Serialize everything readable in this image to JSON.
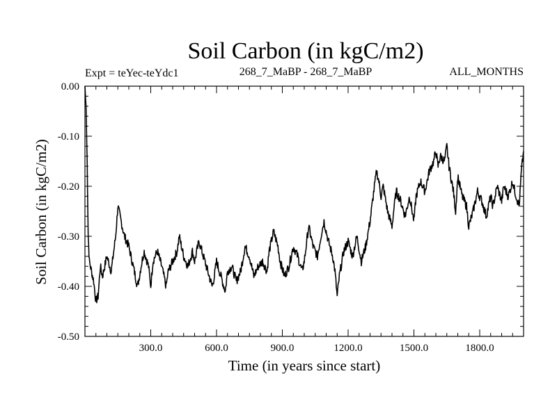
{
  "chart_data": {
    "type": "line",
    "title": "Soil Carbon (in kgC/m2)",
    "subtitle_left": "Expt = teYec-teYdc1",
    "subtitle_center": "268_7_MaBP - 268_7_MaBP",
    "subtitle_right": "ALL_MONTHS",
    "xlabel": "Time (in years since start)",
    "ylabel": "Soil Carbon (in kgC/m2)",
    "xlim": [
      0,
      2000
    ],
    "ylim": [
      -0.5,
      0.0
    ],
    "xticks": [
      300,
      600,
      900,
      1200,
      1500,
      1800
    ],
    "xtick_labels": [
      "300.0",
      "600.0",
      "900.0",
      "1200.0",
      "1500.0",
      "1800.0"
    ],
    "yticks": [
      0.0,
      -0.1,
      -0.2,
      -0.3,
      -0.4,
      -0.5
    ],
    "ytick_labels": [
      "0.00",
      "-0.10",
      "-0.20",
      "-0.30",
      "-0.40",
      "-0.50"
    ],
    "series": [
      {
        "name": "Soil Carbon",
        "color": "#000000",
        "x": [
          0,
          5,
          10,
          15,
          20,
          30,
          40,
          50,
          60,
          70,
          80,
          100,
          120,
          140,
          150,
          160,
          170,
          180,
          200,
          220,
          240,
          260,
          270,
          290,
          300,
          310,
          330,
          350,
          370,
          380,
          400,
          420,
          430,
          450,
          470,
          490,
          500,
          520,
          540,
          560,
          580,
          590,
          600,
          620,
          640,
          650,
          670,
          690,
          710,
          730,
          750,
          770,
          790,
          810,
          830,
          840,
          860,
          880,
          890,
          910,
          930,
          950,
          970,
          990,
          1000,
          1020,
          1040,
          1060,
          1080,
          1090,
          1110,
          1130,
          1140,
          1150,
          1160,
          1180,
          1200,
          1220,
          1240,
          1260,
          1280,
          1300,
          1320,
          1330,
          1340,
          1350,
          1360,
          1380,
          1400,
          1410,
          1420,
          1440,
          1460,
          1480,
          1500,
          1510,
          1530,
          1550,
          1570,
          1590,
          1600,
          1610,
          1620,
          1640,
          1650,
          1660,
          1680,
          1690,
          1700,
          1720,
          1740,
          1750,
          1770,
          1790,
          1810,
          1830,
          1850,
          1860,
          1880,
          1900,
          1910,
          1930,
          1950,
          1960,
          1980,
          1990,
          2000
        ],
        "y": [
          0.0,
          -0.04,
          -0.15,
          -0.3,
          -0.35,
          -0.37,
          -0.39,
          -0.43,
          -0.42,
          -0.36,
          -0.38,
          -0.34,
          -0.37,
          -0.3,
          -0.24,
          -0.26,
          -0.28,
          -0.3,
          -0.32,
          -0.36,
          -0.4,
          -0.35,
          -0.33,
          -0.36,
          -0.4,
          -0.35,
          -0.33,
          -0.36,
          -0.4,
          -0.37,
          -0.35,
          -0.33,
          -0.3,
          -0.34,
          -0.36,
          -0.33,
          -0.35,
          -0.31,
          -0.34,
          -0.37,
          -0.4,
          -0.38,
          -0.35,
          -0.38,
          -0.41,
          -0.37,
          -0.36,
          -0.39,
          -0.37,
          -0.32,
          -0.34,
          -0.38,
          -0.36,
          -0.35,
          -0.37,
          -0.33,
          -0.29,
          -0.32,
          -0.35,
          -0.38,
          -0.36,
          -0.32,
          -0.34,
          -0.37,
          -0.35,
          -0.28,
          -0.32,
          -0.34,
          -0.29,
          -0.27,
          -0.31,
          -0.34,
          -0.37,
          -0.42,
          -0.38,
          -0.33,
          -0.31,
          -0.34,
          -0.3,
          -0.35,
          -0.32,
          -0.27,
          -0.2,
          -0.17,
          -0.19,
          -0.22,
          -0.2,
          -0.25,
          -0.28,
          -0.24,
          -0.21,
          -0.23,
          -0.26,
          -0.22,
          -0.27,
          -0.22,
          -0.19,
          -0.21,
          -0.17,
          -0.15,
          -0.13,
          -0.16,
          -0.14,
          -0.15,
          -0.12,
          -0.16,
          -0.21,
          -0.25,
          -0.18,
          -0.22,
          -0.24,
          -0.28,
          -0.25,
          -0.21,
          -0.23,
          -0.26,
          -0.22,
          -0.24,
          -0.2,
          -0.23,
          -0.2,
          -0.22,
          -0.19,
          -0.21,
          -0.24,
          -0.17,
          -0.13
        ]
      }
    ]
  }
}
